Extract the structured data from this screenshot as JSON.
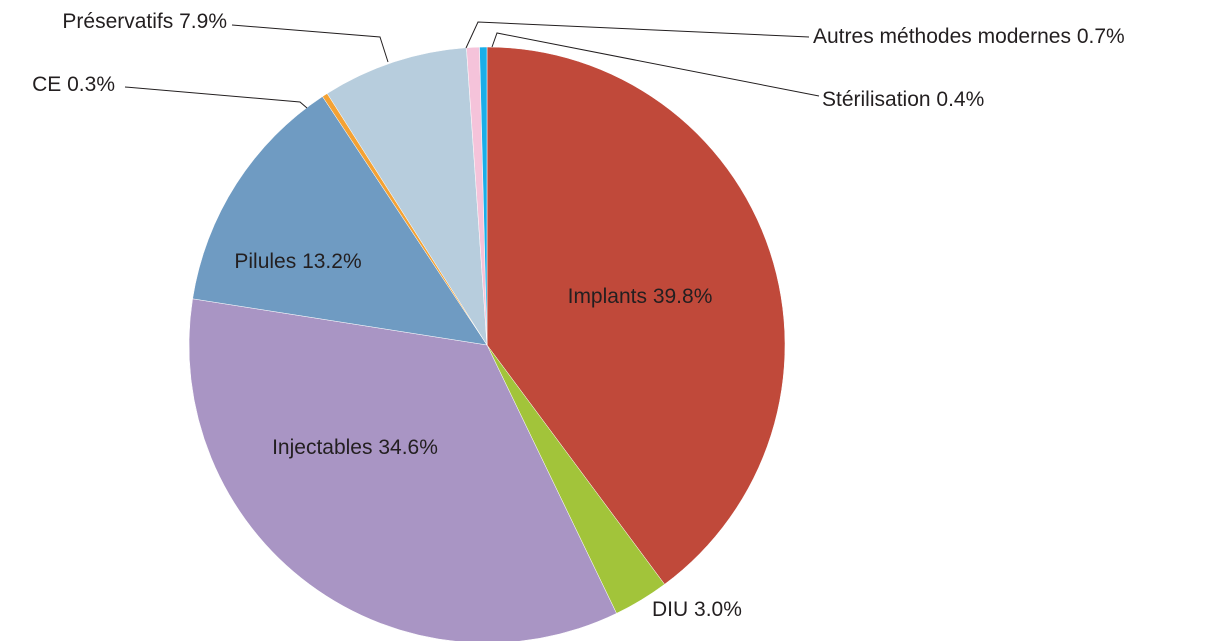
{
  "chart_data": {
    "type": "pie",
    "categories": [
      "Implants",
      "DIU",
      "Injectables",
      "Pilules",
      "CE",
      "Préservatifs",
      "Autres méthodes modernes",
      "Stérilisation"
    ],
    "values": [
      39.8,
      3.0,
      34.6,
      13.2,
      0.3,
      7.9,
      0.7,
      0.4
    ],
    "value_labels": [
      "39.8%",
      "3.0%",
      "34.6%",
      "13.2%",
      "0.3%",
      "7.9%",
      "0.7%",
      "0.4%"
    ],
    "colors": [
      "#c0493a",
      "#a2c43a",
      "#a995c4",
      "#6f9bc2",
      "#f4a234",
      "#b7cddd",
      "#f5c3da",
      "#1aaee8"
    ]
  }
}
